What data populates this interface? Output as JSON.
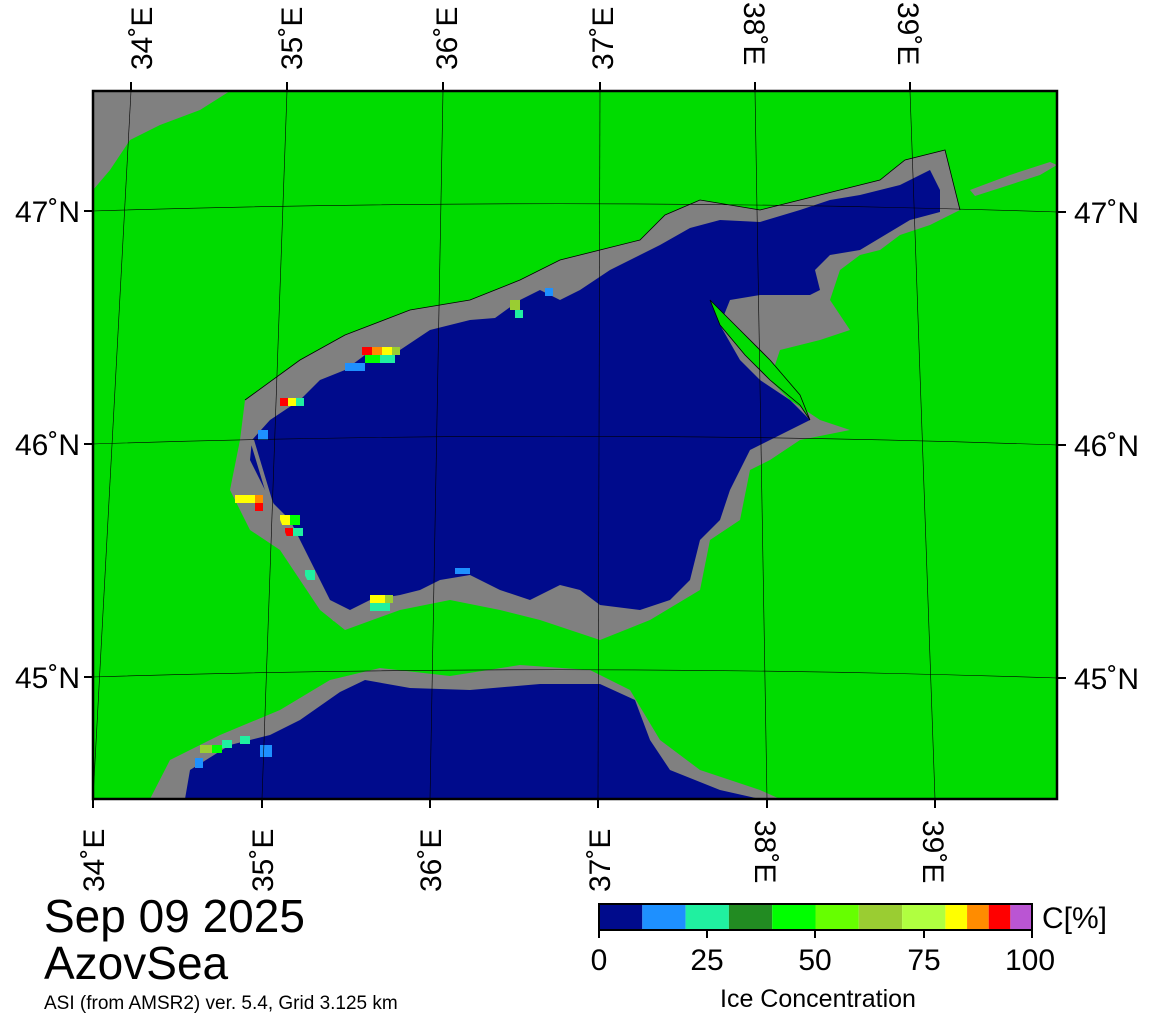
{
  "map": {
    "date": "Sep 09 2025",
    "region": "AzovSea",
    "product": "ASI (from AMSR2) ver. 5.4,  Grid 3.125 km",
    "colors": {
      "land": "#00dc00",
      "coast_mask": "#808080",
      "open_water": "#000b8c"
    }
  },
  "axes": {
    "top_lon": [
      "34˚E",
      "35˚E",
      "36˚E",
      "37˚E",
      "38˚E",
      "39˚E"
    ],
    "bottom_lon": [
      "34˚E",
      "35˚E",
      "36˚E",
      "37˚E",
      "38˚E",
      "39˚E"
    ],
    "left_lat": [
      "47˚N",
      "46˚N",
      "45˚N"
    ],
    "right_lat": [
      "47˚N",
      "46˚N",
      "45˚N"
    ]
  },
  "colorbar": {
    "unit": "C[%]",
    "title": "Ice Concentration",
    "ticks": [
      "0",
      "25",
      "50",
      "75",
      "100"
    ],
    "colors": [
      "#000b8c",
      "#1e90ff",
      "#20f0a0",
      "#228b22",
      "#00ff00",
      "#66ff00",
      "#9acd32",
      "#b0ff40",
      "#ffff00",
      "#ff8c00",
      "#ff0000",
      "#ba55d3",
      "#9400d3"
    ]
  }
}
